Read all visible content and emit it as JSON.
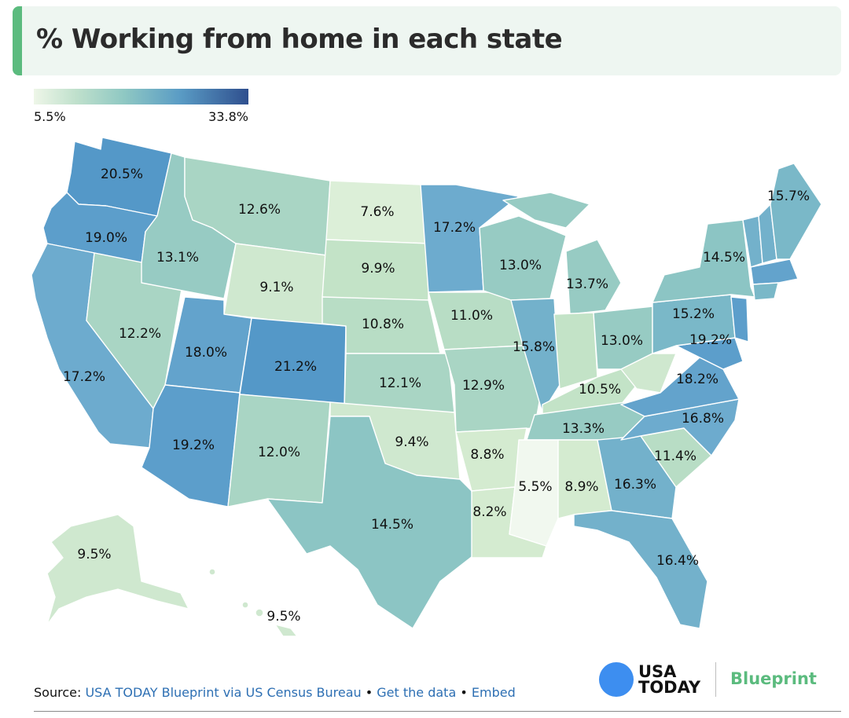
{
  "title": "% Working from home in each state",
  "legend": {
    "min_label": "5.5%",
    "max_label": "33.8%"
  },
  "colors": {
    "v5_5": "#f1f8ef",
    "v7_6": "#dcefd8",
    "v8_9": "#d4ebd0",
    "v9_5": "#cfe8cf",
    "v10_5": "#c3e3c7",
    "v11_0": "#b8ddc5",
    "v12_5": "#a9d5c4",
    "v13_5": "#97cbc3",
    "v14_5": "#8cc5c4",
    "v15_5": "#7ab8c8",
    "v16_5": "#73b1cb",
    "v17_5": "#6dabce",
    "v18_5": "#63a3cc",
    "v19_5": "#5c9ecb",
    "v21": "#5498c8"
  },
  "chart_data": {
    "type": "choropleth",
    "metric": "% Working from home",
    "scale": {
      "min": 5.5,
      "max": 33.8
    },
    "states": [
      {
        "state": "Washington",
        "value": 20.5,
        "label": "20.5%"
      },
      {
        "state": "Oregon",
        "value": 19.0,
        "label": "19.0%"
      },
      {
        "state": "California",
        "value": 17.2,
        "label": "17.2%"
      },
      {
        "state": "Nevada",
        "value": 12.2,
        "label": "12.2%"
      },
      {
        "state": "Idaho",
        "value": 13.1,
        "label": "13.1%"
      },
      {
        "state": "Montana",
        "value": 12.6,
        "label": "12.6%"
      },
      {
        "state": "Wyoming",
        "value": 9.1,
        "label": "9.1%"
      },
      {
        "state": "Utah",
        "value": 18.0,
        "label": "18.0%"
      },
      {
        "state": "Arizona",
        "value": 19.2,
        "label": "19.2%"
      },
      {
        "state": "Colorado",
        "value": 21.2,
        "label": "21.2%"
      },
      {
        "state": "New Mexico",
        "value": 12.0,
        "label": "12.0%"
      },
      {
        "state": "North Dakota",
        "value": 7.6,
        "label": "7.6%"
      },
      {
        "state": "South Dakota",
        "value": 9.9,
        "label": "9.9%"
      },
      {
        "state": "Nebraska",
        "value": 10.8,
        "label": "10.8%"
      },
      {
        "state": "Kansas",
        "value": 12.1,
        "label": "12.1%"
      },
      {
        "state": "Oklahoma",
        "value": 9.4,
        "label": "9.4%"
      },
      {
        "state": "Texas",
        "value": 14.5,
        "label": "14.5%"
      },
      {
        "state": "Minnesota",
        "value": 17.2,
        "label": "17.2%"
      },
      {
        "state": "Iowa",
        "value": 11.0,
        "label": "11.0%"
      },
      {
        "state": "Missouri",
        "value": 12.9,
        "label": "12.9%"
      },
      {
        "state": "Arkansas",
        "value": 8.8,
        "label": "8.8%"
      },
      {
        "state": "Louisiana",
        "value": 8.2,
        "label": "8.2%"
      },
      {
        "state": "Wisconsin",
        "value": 13.0,
        "label": "13.0%"
      },
      {
        "state": "Illinois",
        "value": 15.8,
        "label": "15.8%"
      },
      {
        "state": "Michigan",
        "value": 13.7,
        "label": "13.7%"
      },
      {
        "state": "Indiana",
        "value": null,
        "label": ""
      },
      {
        "state": "Ohio",
        "value": 13.0,
        "label": "13.0%"
      },
      {
        "state": "Kentucky",
        "value": 10.5,
        "label": "10.5%"
      },
      {
        "state": "Tennessee",
        "value": 13.3,
        "label": "13.3%"
      },
      {
        "state": "Mississippi",
        "value": 5.5,
        "label": "5.5%"
      },
      {
        "state": "Alabama",
        "value": 8.9,
        "label": "8.9%"
      },
      {
        "state": "Georgia",
        "value": 16.3,
        "label": "16.3%"
      },
      {
        "state": "Florida",
        "value": 16.4,
        "label": "16.4%"
      },
      {
        "state": "South Carolina",
        "value": 11.4,
        "label": "11.4%"
      },
      {
        "state": "North Carolina",
        "value": 16.8,
        "label": "16.8%"
      },
      {
        "state": "Virginia",
        "value": 18.2,
        "label": "18.2%"
      },
      {
        "state": "West Virginia",
        "value": null,
        "label": ""
      },
      {
        "state": "Maryland",
        "value": 19.2,
        "label": "19.2%"
      },
      {
        "state": "Pennsylvania",
        "value": 15.2,
        "label": "15.2%"
      },
      {
        "state": "New York",
        "value": 14.5,
        "label": "14.5%"
      },
      {
        "state": "Maine",
        "value": 15.7,
        "label": "15.7%"
      },
      {
        "state": "Alaska",
        "value": 9.5,
        "label": "9.5%"
      },
      {
        "state": "Hawaii",
        "value": 9.5,
        "label": "9.5%"
      }
    ]
  },
  "footer": {
    "source_prefix": "Source:",
    "source_link": "USA TODAY Blueprint via US Census Bureau",
    "sep1": "•",
    "data_link": "Get the data",
    "sep2": "•",
    "embed_link": "Embed"
  },
  "branding": {
    "usa": "USA",
    "today": "TODAY",
    "blueprint": "Blueprint"
  }
}
